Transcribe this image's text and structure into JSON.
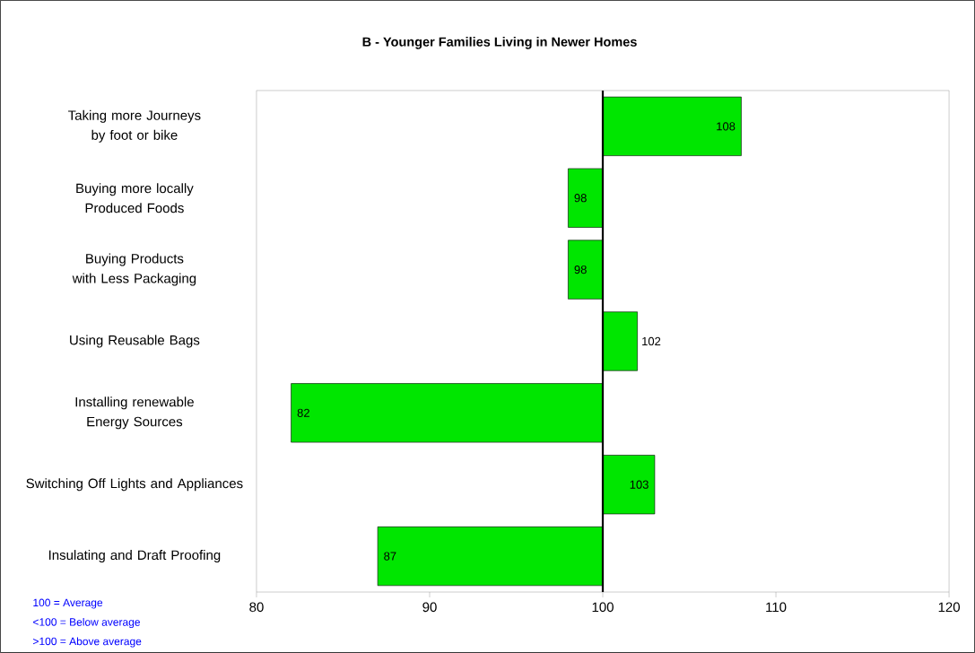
{
  "chart_data": {
    "type": "bar",
    "orientation": "horizontal",
    "title": "B - Younger Families Living in Newer Homes",
    "categories": [
      "Taking more Journeys by foot or bike",
      "Buying more locally Produced Foods",
      "Buying Products with Less Packaging",
      "Using Reusable Bags",
      "Installing renewable Energy Sources",
      "Switching Off Lights and Appliances",
      "Insulating and Draft Proofing"
    ],
    "base": [
      100,
      100,
      100,
      100,
      100,
      100,
      100
    ],
    "values": [
      8,
      -2,
      -2,
      2,
      -18,
      3,
      -13
    ],
    "value_labels": [
      "108",
      "98",
      "98",
      "102",
      "82",
      "103",
      "87"
    ],
    "color": "#00e600",
    "xlim": [
      80,
      120
    ],
    "xticks": [
      80,
      90,
      100,
      110,
      120
    ],
    "ref_lines": [
      {
        "axis": "x",
        "value": 100,
        "color": "#000000"
      }
    ],
    "annotations": [
      "100 = Average",
      "<100 = Below average",
      ">100 = Above average"
    ]
  }
}
